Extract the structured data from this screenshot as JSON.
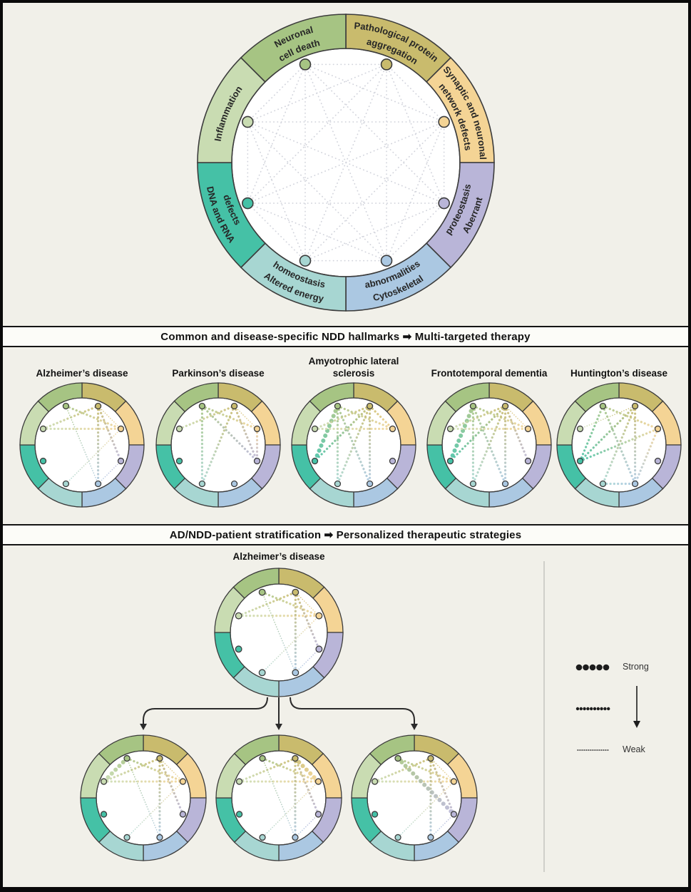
{
  "headers": {
    "multi_targeted": "Common and disease-specific NDD hallmarks ➡ Multi-targeted therapy",
    "stratification": "AD/NDD-patient stratification ➡ Personalized therapeutic strategies"
  },
  "hallmarks": [
    {
      "label_lines": [
        "Pathological protein",
        "aggregation"
      ],
      "color": "#c9bb6d"
    },
    {
      "label_lines": [
        "Synaptic and neuronal",
        "network defects"
      ],
      "color": "#f4d495"
    },
    {
      "label_lines": [
        "Aberrant",
        "proteostasis"
      ],
      "color": "#b9b5d8"
    },
    {
      "label_lines": [
        "Cytoskeletal",
        "abnormalities"
      ],
      "color": "#abc8e2"
    },
    {
      "label_lines": [
        "Altered energy",
        "homeostasis"
      ],
      "color": "#a7d6d2"
    },
    {
      "label_lines": [
        "DNA and RNA",
        "defects"
      ],
      "color": "#45c1a6"
    },
    {
      "label_lines": [
        "Inflammation"
      ],
      "color": "#c9dcb2"
    },
    {
      "label_lines": [
        "Neuronal",
        "cell death"
      ],
      "color": "#a6c483"
    }
  ],
  "graph_style": {
    "background_edge_color": "#d2d4dc",
    "ring_stroke_color": "#3c3c3c",
    "inner_fill": "#ffffff"
  },
  "diseases": [
    {
      "name": "Alzheimer’s disease",
      "edges": [
        [
          6,
          0,
          2
        ],
        [
          6,
          1,
          2
        ],
        [
          7,
          1,
          2
        ],
        [
          0,
          1,
          1
        ],
        [
          0,
          2,
          2
        ],
        [
          0,
          3,
          2
        ],
        [
          7,
          3,
          1
        ],
        [
          1,
          4,
          1
        ],
        [
          3,
          2,
          1
        ]
      ]
    },
    {
      "name": "Parkinson’s disease",
      "edges": [
        [
          7,
          4,
          2
        ],
        [
          7,
          1,
          2
        ],
        [
          7,
          2,
          2
        ],
        [
          6,
          0,
          2
        ],
        [
          0,
          4,
          2
        ],
        [
          0,
          2,
          2
        ],
        [
          0,
          1,
          1
        ],
        [
          1,
          2,
          2
        ]
      ]
    },
    {
      "name": "Amyotrophic lateral sclerosis",
      "edges": [
        [
          7,
          5,
          3
        ],
        [
          7,
          4,
          2
        ],
        [
          7,
          3,
          2
        ],
        [
          7,
          1,
          2
        ],
        [
          0,
          6,
          2
        ],
        [
          0,
          5,
          2
        ],
        [
          0,
          4,
          2
        ],
        [
          0,
          3,
          2
        ],
        [
          0,
          1,
          2
        ],
        [
          6,
          1,
          2
        ]
      ]
    },
    {
      "name": "Frontotemporal dementia",
      "edges": [
        [
          7,
          5,
          3
        ],
        [
          7,
          4,
          2
        ],
        [
          7,
          3,
          2
        ],
        [
          7,
          1,
          2
        ],
        [
          0,
          6,
          2
        ],
        [
          0,
          5,
          2
        ],
        [
          0,
          4,
          2
        ],
        [
          0,
          3,
          2
        ],
        [
          0,
          2,
          2
        ],
        [
          0,
          1,
          1
        ],
        [
          6,
          1,
          2
        ]
      ]
    },
    {
      "name": "Huntington’s disease",
      "edges": [
        [
          4,
          3,
          2
        ],
        [
          5,
          0,
          2
        ],
        [
          5,
          1,
          2
        ],
        [
          5,
          7,
          2
        ],
        [
          7,
          3,
          2
        ],
        [
          7,
          1,
          2
        ],
        [
          0,
          4,
          2
        ],
        [
          0,
          3,
          2
        ],
        [
          1,
          3,
          2
        ],
        [
          6,
          0,
          1
        ]
      ]
    }
  ],
  "stratification": {
    "source_label": "Alzheimer’s disease",
    "source_edges": [
      [
        6,
        0,
        2
      ],
      [
        6,
        1,
        2
      ],
      [
        7,
        1,
        2
      ],
      [
        0,
        1,
        1
      ],
      [
        0,
        2,
        2
      ],
      [
        0,
        3,
        2
      ],
      [
        7,
        3,
        1
      ],
      [
        1,
        4,
        1
      ],
      [
        3,
        2,
        1
      ]
    ],
    "patients": [
      {
        "edges": [
          [
            6,
            0,
            2
          ],
          [
            6,
            1,
            2
          ],
          [
            7,
            1,
            2
          ],
          [
            0,
            1,
            1
          ],
          [
            0,
            2,
            2
          ],
          [
            0,
            3,
            2
          ],
          [
            7,
            3,
            1
          ],
          [
            1,
            4,
            1
          ],
          [
            7,
            6,
            3
          ]
        ]
      },
      {
        "edges": [
          [
            6,
            0,
            2
          ],
          [
            6,
            1,
            2
          ],
          [
            7,
            1,
            2
          ],
          [
            0,
            1,
            3
          ],
          [
            0,
            2,
            2
          ],
          [
            0,
            3,
            2
          ],
          [
            7,
            3,
            1
          ],
          [
            1,
            4,
            1
          ],
          [
            3,
            2,
            1
          ]
        ]
      },
      {
        "edges": [
          [
            6,
            0,
            2
          ],
          [
            6,
            1,
            2
          ],
          [
            7,
            1,
            2
          ],
          [
            0,
            1,
            1
          ],
          [
            0,
            2,
            2
          ],
          [
            0,
            3,
            2
          ],
          [
            7,
            2,
            3
          ],
          [
            1,
            4,
            1
          ],
          [
            3,
            2,
            1
          ]
        ]
      }
    ]
  },
  "legend": {
    "strong": "Strong",
    "weak": "Weak"
  }
}
